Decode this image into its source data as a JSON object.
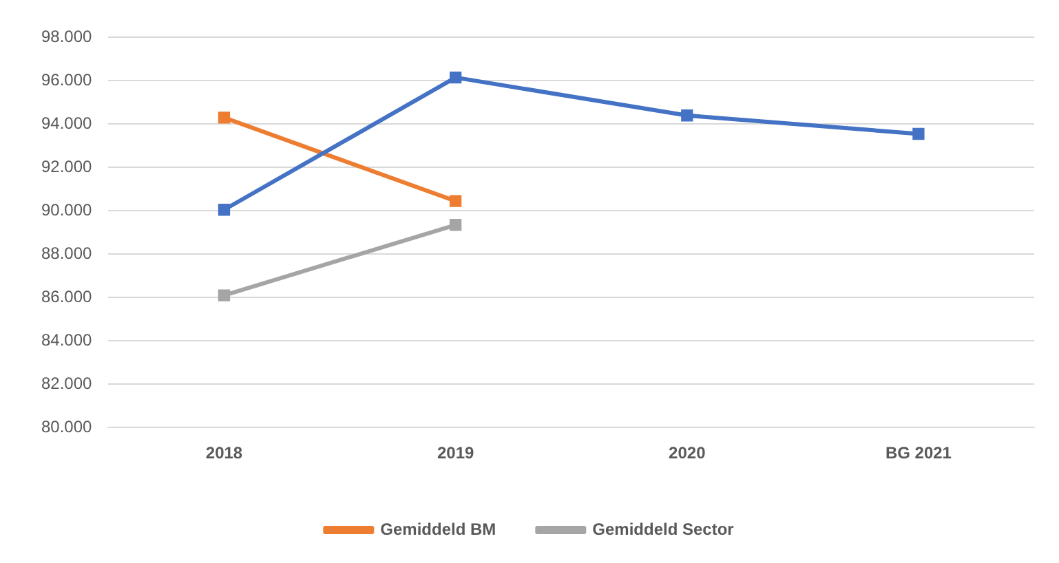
{
  "chart_data": {
    "type": "line",
    "categories": [
      "2018",
      "2019",
      "2020",
      "BG 2021"
    ],
    "series": [
      {
        "color": "#4472c4",
        "values": [
          90050,
          96150,
          94400,
          93550
        ]
      },
      {
        "name": "Gemiddeld BM",
        "color": "#ed7d31",
        "values": [
          94300,
          90450,
          null,
          null
        ]
      },
      {
        "name": "Gemiddeld Sector",
        "color": "#a5a5a5",
        "values": [
          86100,
          89350,
          null,
          null
        ]
      }
    ],
    "ylim": [
      80000,
      98000
    ],
    "yticks": [
      {
        "value": 80000,
        "label": "80.000"
      },
      {
        "value": 82000,
        "label": "82.000"
      },
      {
        "value": 84000,
        "label": "84.000"
      },
      {
        "value": 86000,
        "label": "86.000"
      },
      {
        "value": 88000,
        "label": "88.000"
      },
      {
        "value": 90000,
        "label": "90.000"
      },
      {
        "value": 92000,
        "label": "92.000"
      },
      {
        "value": 94000,
        "label": "94.000"
      },
      {
        "value": 96000,
        "label": "96.000"
      },
      {
        "value": 98000,
        "label": "98.000"
      }
    ],
    "grid": "y",
    "legend": "bottom",
    "marker": "square",
    "line_style": "solid"
  }
}
